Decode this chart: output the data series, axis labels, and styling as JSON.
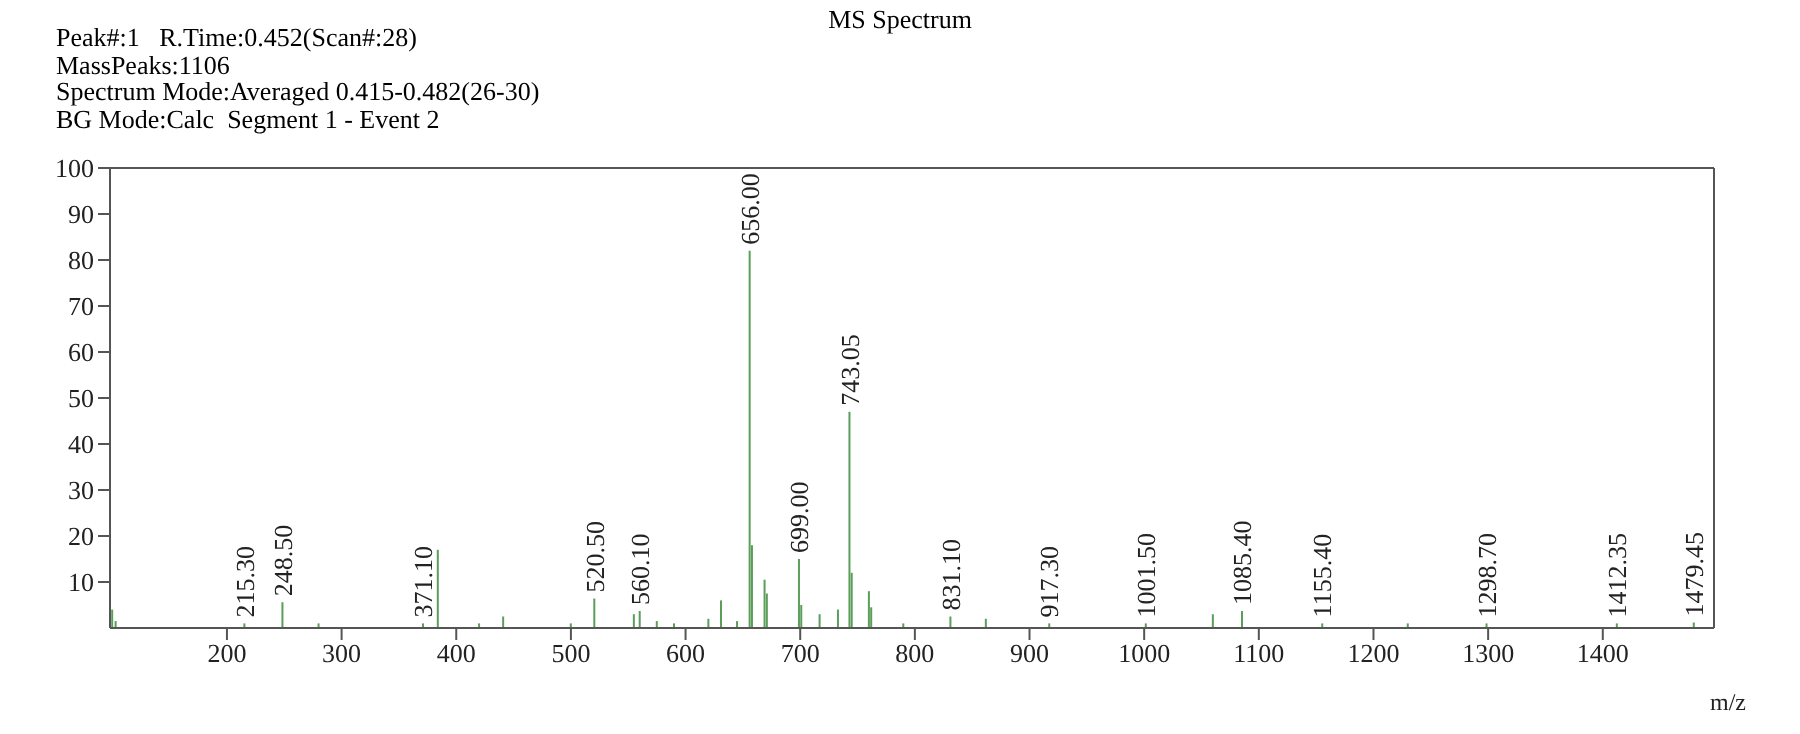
{
  "chart_data": {
    "type": "bar",
    "title": "MS Spectrum",
    "xlabel": "m/z",
    "color": "#5a9e5a",
    "x": [
      100,
      103,
      215.3,
      248.5,
      280,
      371.1,
      384,
      420,
      441,
      500,
      520.5,
      555,
      560.1,
      575,
      590,
      620,
      631,
      645,
      656,
      658,
      669,
      671,
      699,
      701,
      717,
      733,
      743.05,
      745,
      760,
      762,
      790,
      831.1,
      862,
      917.3,
      1001.5,
      1060,
      1085.4,
      1155.4,
      1230,
      1298.7,
      1412.35,
      1479.45
    ],
    "values": [
      4,
      1.5,
      1,
      5.6,
      1,
      1,
      17,
      1,
      2.5,
      1,
      6.4,
      3,
      3.7,
      1.5,
      1,
      2,
      6,
      1.5,
      82,
      18,
      10.5,
      7.5,
      15,
      5,
      3,
      4,
      47,
      12,
      8,
      4.5,
      1,
      2.5,
      2,
      1,
      1,
      3,
      3.7,
      1,
      1,
      1,
      1,
      1.2
    ],
    "xlim": [
      98,
      1497
    ],
    "xticks": [
      200,
      300,
      400,
      500,
      600,
      700,
      800,
      900,
      1000,
      1100,
      1200,
      1300,
      1400
    ],
    "ylim": [
      0,
      100
    ],
    "yticks": [
      10,
      20,
      30,
      40,
      50,
      60,
      70,
      80,
      90,
      100
    ],
    "annotations": [
      "Peak#:1   R.Time:0.452(Scan#:28)",
      "MassPeaks:1106",
      "Spectrum Mode:Averaged 0.415-0.482(26-30)",
      "BG Mode:Calc  Segment 1 - Event 2",
      {
        "text": "215.30",
        "x": 215.3,
        "y": 1
      },
      {
        "text": "248.50",
        "x": 248.5,
        "y": 5.6
      },
      {
        "text": "371.10",
        "x": 371.1,
        "y": 1
      },
      {
        "text": "520.50",
        "x": 520.5,
        "y": 6.4
      },
      {
        "text": "560.10",
        "x": 560.1,
        "y": 3.7
      },
      {
        "text": "656.00",
        "x": 656,
        "y": 82
      },
      {
        "text": "699.00",
        "x": 699,
        "y": 15
      },
      {
        "text": "743.05",
        "x": 743.05,
        "y": 47
      },
      {
        "text": "831.10",
        "x": 831.1,
        "y": 2.5
      },
      {
        "text": "917.30",
        "x": 917.3,
        "y": 1
      },
      {
        "text": "1001.50",
        "x": 1001.5,
        "y": 1
      },
      {
        "text": "1085.40",
        "x": 1085.4,
        "y": 3.7
      },
      {
        "text": "1155.40",
        "x": 1155.4,
        "y": 1
      },
      {
        "text": "1298.70",
        "x": 1298.7,
        "y": 1
      },
      {
        "text": "1412.35",
        "x": 1412.35,
        "y": 1
      },
      {
        "text": "1479.45",
        "x": 1479.45,
        "y": 1.2
      }
    ]
  }
}
